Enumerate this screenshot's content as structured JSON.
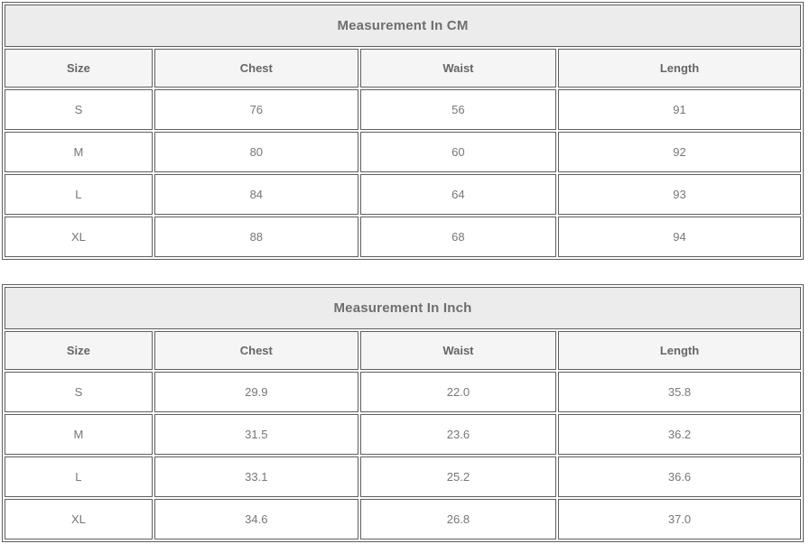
{
  "colors": {
    "border": "#5f5f5f",
    "title_background": "#ececec",
    "header_background": "#f5f5f5",
    "title_text": "#6e6e6e",
    "header_text": "#666666",
    "cell_text": "#777777"
  },
  "chart_data": [
    {
      "type": "table",
      "title": "Measurement In CM",
      "columns": [
        "Size",
        "Chest",
        "Waist",
        "Length"
      ],
      "rows": [
        [
          "S",
          "76",
          "56",
          "91"
        ],
        [
          "M",
          "80",
          "60",
          "92"
        ],
        [
          "L",
          "84",
          "64",
          "93"
        ],
        [
          "XL",
          "88",
          "68",
          "94"
        ]
      ]
    },
    {
      "type": "table",
      "title": "Measurement In Inch",
      "columns": [
        "Size",
        "Chest",
        "Waist",
        "Length"
      ],
      "rows": [
        [
          "S",
          "29.9",
          "22.0",
          "35.8"
        ],
        [
          "M",
          "31.5",
          "23.6",
          "36.2"
        ],
        [
          "L",
          "33.1",
          "25.2",
          "36.6"
        ],
        [
          "XL",
          "34.6",
          "26.8",
          "37.0"
        ]
      ]
    }
  ]
}
